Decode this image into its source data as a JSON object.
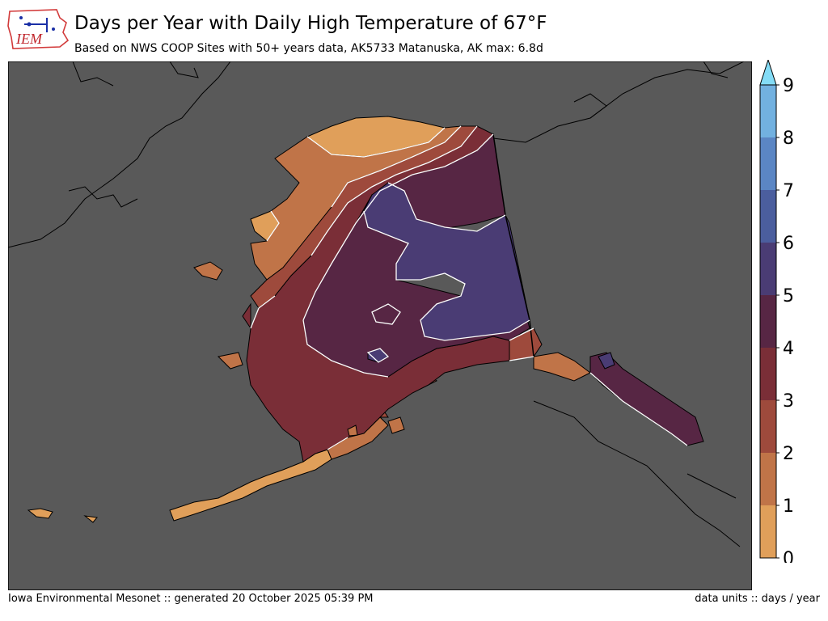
{
  "header": {
    "logo_text": "IEM",
    "title": "Days per Year with Daily High Temperature of 67°F",
    "subtitle": "Based on NWS COOP Sites with 50+ years data, AK5733 Matanuska, AK max: 6.8d"
  },
  "footer": {
    "left": "Iowa Environmental Mesonet :: generated 20 October 2025 05:39 PM",
    "right": "data units :: days / year"
  },
  "colorbar": {
    "ticks": [
      "0",
      "1",
      "2",
      "3",
      "4",
      "5",
      "6",
      "7",
      "8",
      "9"
    ],
    "bins": [
      {
        "range": "0-1",
        "color": "#e09f5a"
      },
      {
        "range": "1-2",
        "color": "#c07448"
      },
      {
        "range": "2-3",
        "color": "#9e4a3c"
      },
      {
        "range": "3-4",
        "color": "#7a2e37"
      },
      {
        "range": "4-5",
        "color": "#572644"
      },
      {
        "range": "5-6",
        "color": "#4a3c74"
      },
      {
        "range": "6-7",
        "color": "#4b5e9e"
      },
      {
        "range": "7-8",
        "color": "#5b86c4"
      },
      {
        "range": "8-9",
        "color": "#72b1e0"
      }
    ],
    "extend_max_color": "#84dcf6"
  },
  "map": {
    "background_color": "#595959",
    "region": "Alaska"
  }
}
